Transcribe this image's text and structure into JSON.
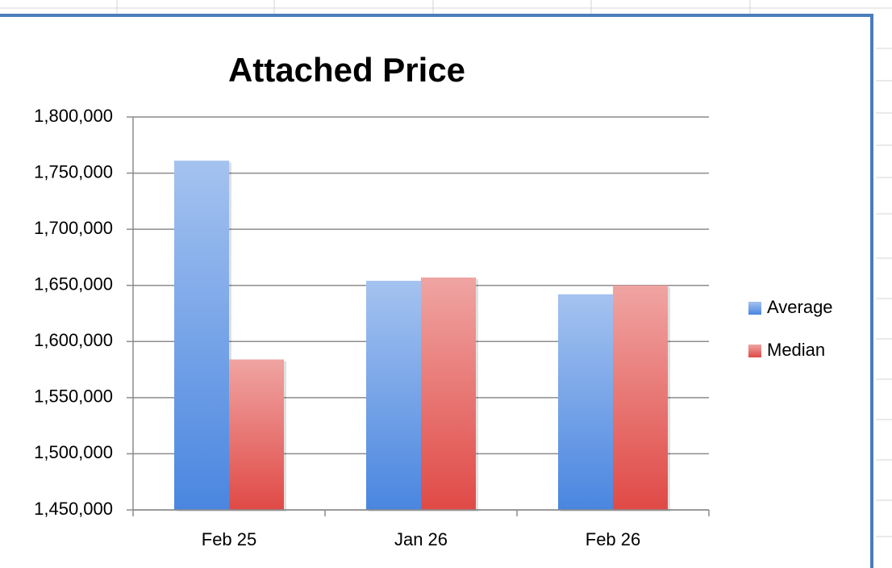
{
  "chart_data": {
    "type": "bar",
    "title": "Attached Price",
    "categories": [
      "Feb 25",
      "Jan 26",
      "Feb 26"
    ],
    "series": [
      {
        "name": "Average",
        "color": "#4a86e0",
        "values": [
          1761000,
          1654000,
          1642000
        ]
      },
      {
        "name": "Median",
        "color": "#e04a46",
        "values": [
          1584000,
          1657000,
          1650000
        ]
      }
    ],
    "ylim": [
      1450000,
      1800000
    ],
    "yticks": [
      {
        "value": 1450000,
        "label": "1,450,000"
      },
      {
        "value": 1500000,
        "label": "1,500,000"
      },
      {
        "value": 1550000,
        "label": "1,550,000"
      },
      {
        "value": 1600000,
        "label": "1,600,000"
      },
      {
        "value": 1650000,
        "label": "1,650,000"
      },
      {
        "value": 1700000,
        "label": "1,700,000"
      },
      {
        "value": 1750000,
        "label": "1,750,000"
      },
      {
        "value": 1800000,
        "label": "1,800,000"
      }
    ],
    "grid": true,
    "legend": "right"
  }
}
